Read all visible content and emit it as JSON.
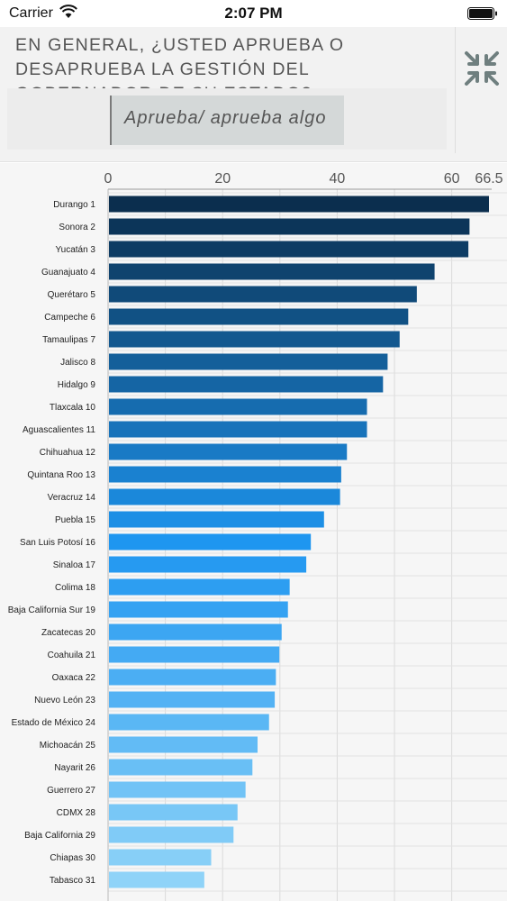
{
  "status_bar": {
    "carrier": "Carrier",
    "time": "2:07 PM"
  },
  "header": {
    "question": "En general, ¿usted aprueba o desaprueba la gestión del gobernador de su estado?",
    "selector_value": "Aprueba/ aprueba algo",
    "collapse_icon": "collapse-arrows-icon"
  },
  "colors": {
    "bar_dark": "#0b2e4e",
    "bar_light": "#8fd3f8"
  },
  "chart_data": {
    "type": "bar",
    "orientation": "horizontal",
    "categories": [
      "Durango 1",
      "Sonora 2",
      "Yucatán 3",
      "Guanajuato 4",
      "Querétaro 5",
      "Campeche 6",
      "Tamaulipas 7",
      "Jalisco 8",
      "Hidalgo 9",
      "Tlaxcala 10",
      "Aguascalientes 11",
      "Chihuahua 12",
      "Quintana Roo 13",
      "Veracruz 14",
      "Puebla 15",
      "San Luis Potosí 16",
      "Sinaloa 17",
      "Colima 18",
      "Baja California Sur 19",
      "Zacatecas 20",
      "Coahuila 21",
      "Oaxaca 22",
      "Nuevo León 23",
      "Estado de México 24",
      "Michoacán 25",
      "Nayarit 26",
      "Guerrero 27",
      "CDMX 28",
      "Baja California 29",
      "Chiapas 30",
      "Tabasco 31"
    ],
    "values": [
      66.5,
      63.1,
      62.9,
      57.0,
      53.9,
      52.4,
      50.9,
      48.8,
      48.0,
      45.2,
      45.2,
      41.7,
      40.7,
      40.5,
      37.7,
      35.4,
      34.6,
      31.7,
      31.4,
      30.3,
      29.9,
      29.3,
      29.1,
      28.1,
      26.1,
      25.2,
      24.0,
      22.6,
      21.9,
      18.0,
      16.8
    ],
    "tick_labels": [
      "0",
      "20",
      "40",
      "60",
      "66.5"
    ],
    "tick_values": [
      0,
      20,
      40,
      60,
      66.5
    ],
    "xlim": [
      0,
      66.5
    ],
    "grid": true
  }
}
